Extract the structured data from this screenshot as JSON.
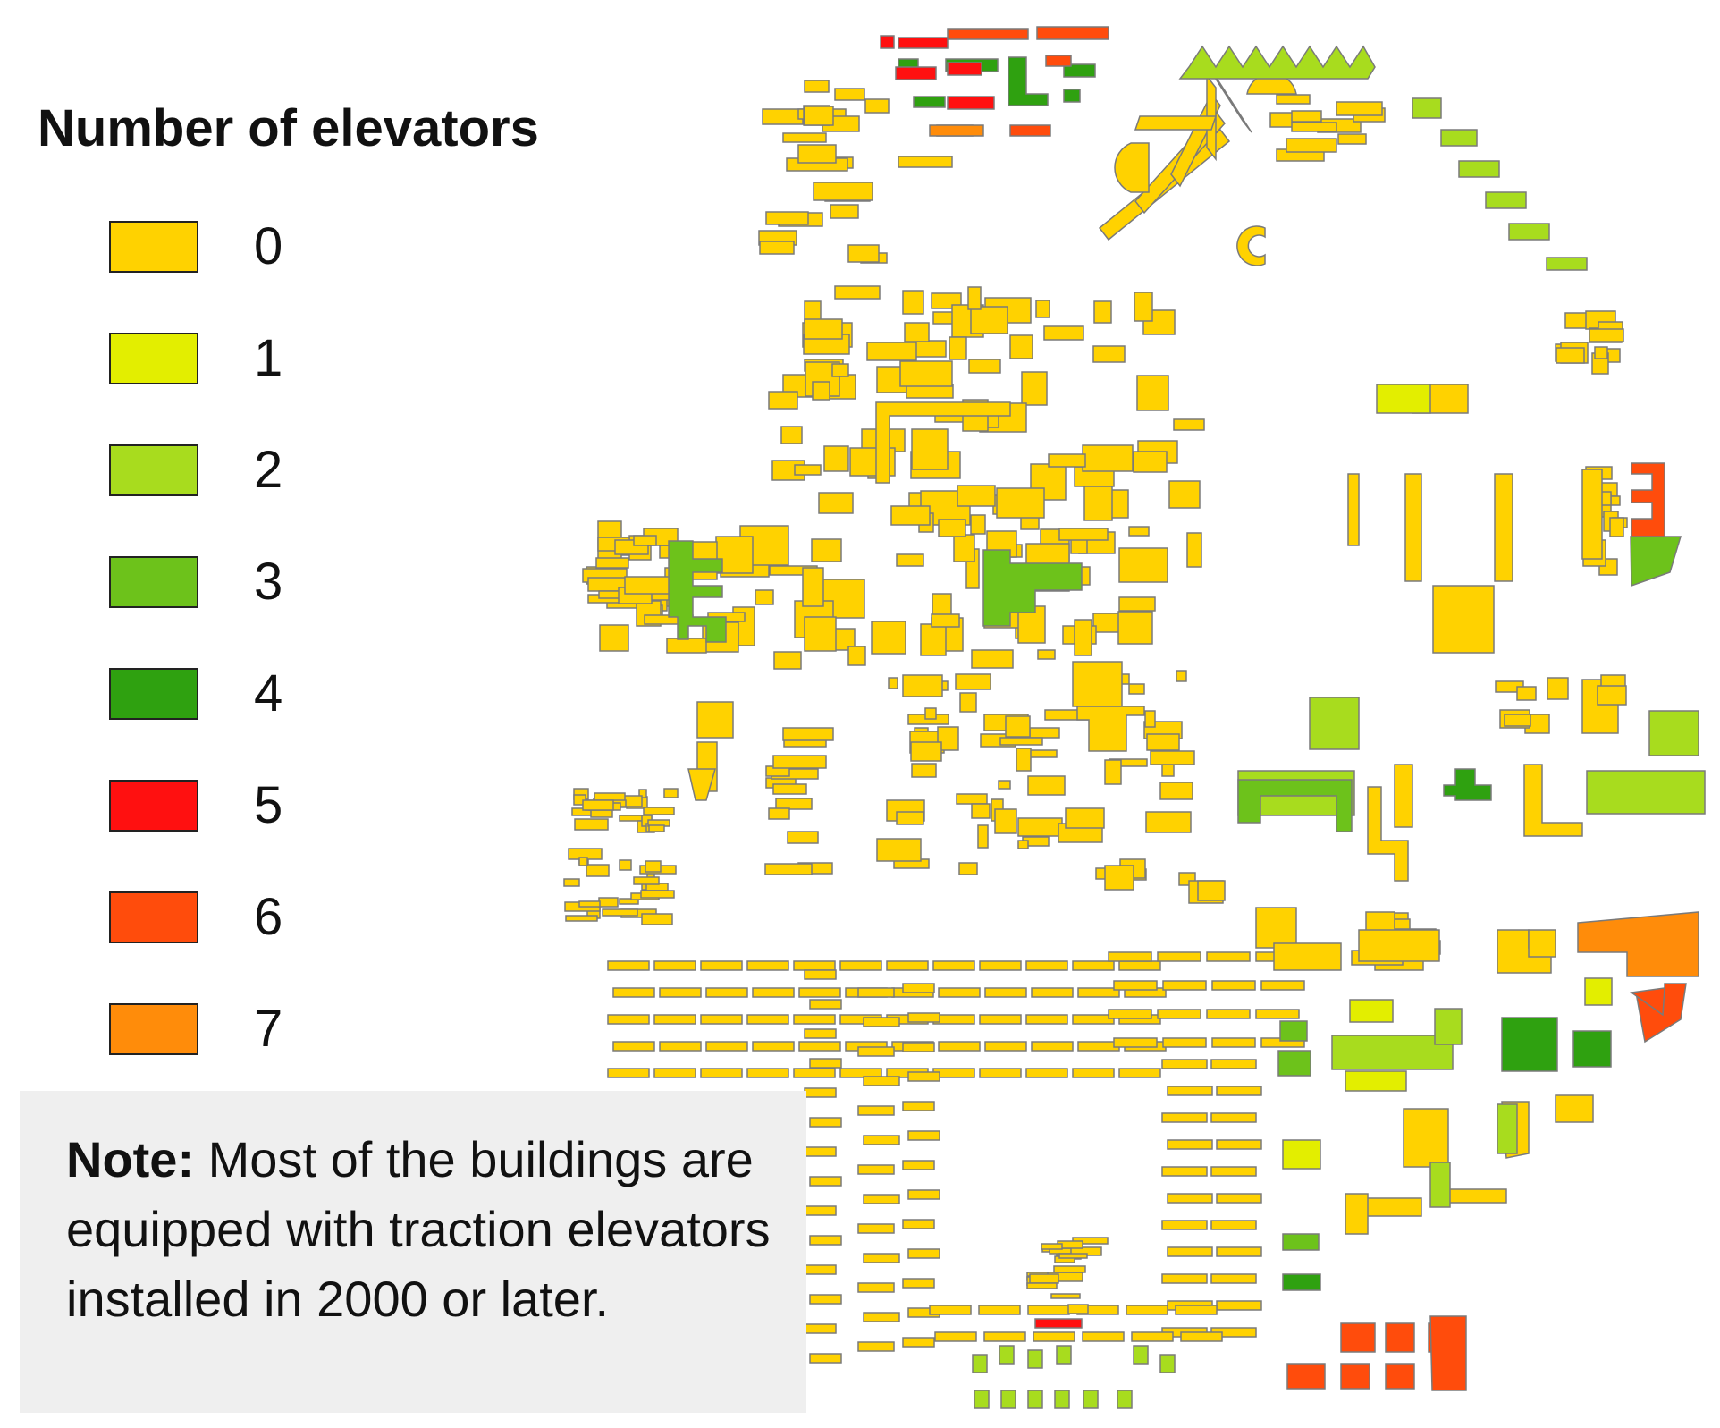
{
  "legend": {
    "title": "Number of elevators",
    "items": [
      {
        "label": "0",
        "color": "#ffd200"
      },
      {
        "label": "1",
        "color": "#e3ee00"
      },
      {
        "label": "2",
        "color": "#a8dc1e"
      },
      {
        "label": "3",
        "color": "#6dc21b"
      },
      {
        "label": "4",
        "color": "#2fa110"
      },
      {
        "label": "5",
        "color": "#ff1010"
      },
      {
        "label": "6",
        "color": "#ff4c0c"
      },
      {
        "label": "7",
        "color": "#ff8c0a"
      }
    ]
  },
  "note": {
    "label": "Note:",
    "text": " Most of the buildings are equipped with traction elevators installed in 2000 or later."
  }
}
